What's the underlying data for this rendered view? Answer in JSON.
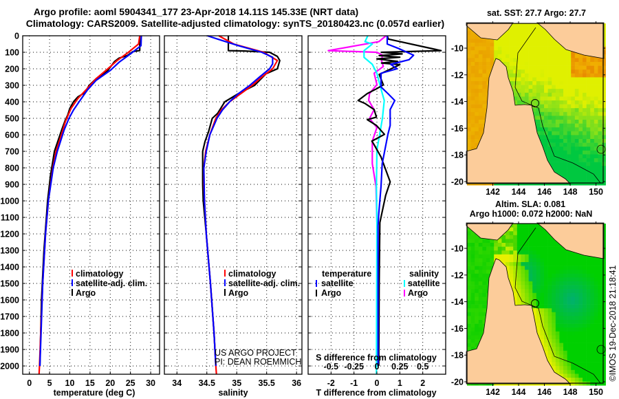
{
  "header": {
    "line1": "Argo profile: aoml 5904341_177 23-Apr-2018 14.11S 145.33E (NRT data)",
    "line2": "Climatology: CARS2009. Satellite-adjusted climatology: synTS_20180423.nc (0.057d earlier)"
  },
  "credit": {
    "line1": "US ARGO PROJECT",
    "line2": "PI: DEAN ROEMMICH"
  },
  "imos_stamp": "©IMOS 19-Dec-2018 21:18:41",
  "legend_profiles": {
    "clim": "climatology",
    "sat": "satellite-adj. clim.",
    "argo": "Argo"
  },
  "legend_diff": {
    "temp_header": "temperature",
    "sal_header": "salinity",
    "sat": "satellite",
    "argo": "Argo"
  },
  "colors": {
    "clim": "#ff0000",
    "sat": "#0000ff",
    "argo": "#000000",
    "s_sat": "#00ffff",
    "s_argo": "#ff00ff",
    "land": "#fccc9a"
  },
  "maps": [
    {
      "title": "sat. SST: 27.7 Argo: 27.7",
      "subtitle": "",
      "lat_ticks": [
        "-10",
        "-12",
        "-14",
        "-16",
        "-18",
        "-20"
      ],
      "lon_ticks": [
        "142",
        "144",
        "146",
        "148",
        "150"
      ],
      "variable": "SST"
    },
    {
      "title": "Altim. SLA: 0.081",
      "subtitle": "Argo h1000: 0.072 h2000: NaN",
      "lat_ticks": [
        "-10",
        "-12",
        "-14",
        "-16",
        "-18",
        "-20"
      ],
      "lon_ticks": [
        "142",
        "144",
        "146",
        "148",
        "150"
      ],
      "variable": "SLA"
    }
  ],
  "chart_data": {
    "type": "line",
    "depth_ticks": [
      "0",
      "100",
      "200",
      "300",
      "400",
      "500",
      "600",
      "700",
      "800",
      "900",
      "1000",
      "1100",
      "1200",
      "1300",
      "1400",
      "1500",
      "1600",
      "1700",
      "1800",
      "1900",
      "2000"
    ],
    "depth_range": [
      0,
      2050
    ],
    "panels": [
      {
        "xlabel": "temperature (deg C)",
        "xlim": [
          -1.65,
          32.2
        ],
        "xticks": [
          "0",
          "5",
          "10",
          "15",
          "20",
          "25",
          "30"
        ],
        "series": [
          {
            "name": "climatology",
            "key": "clim",
            "depth": [
              0,
              50,
              100,
              150,
              200,
              260,
              320,
              380,
              440,
              520,
              570,
              700,
              800,
              1000,
              1200,
              1500,
              1800,
              2000,
              2050
            ],
            "values": [
              27.3,
              27.0,
              24.5,
              21.7,
              19.4,
              16.5,
              14.3,
              12.0,
              10.3,
              8.9,
              8.3,
              6.6,
              5.8,
              4.7,
              4.0,
              3.3,
              2.8,
              2.5,
              2.4
            ]
          },
          {
            "name": "satellite-adj. clim.",
            "key": "sat",
            "depth": [
              0,
              60,
              110,
              160,
              210,
              270,
              330,
              400,
              450,
              500,
              570,
              700,
              800,
              1000,
              1200,
              1500,
              1800,
              2000
            ],
            "values": [
              27.7,
              27.6,
              25.0,
              22.2,
              20.0,
              16.5,
              14.3,
              12.3,
              10.9,
              9.8,
              8.6,
              6.9,
              5.9,
              4.7,
              4.0,
              3.3,
              2.9,
              2.6
            ]
          },
          {
            "name": "Argo",
            "key": "argo",
            "depth": [
              0,
              89,
              96,
              120,
              135,
              155,
              210,
              260,
              300,
              345,
              370,
              400,
              440,
              480,
              510,
              570,
              700,
              850,
              1000,
              1300,
              1600,
              2000
            ],
            "values": [
              27.3,
              27.3,
              25.6,
              24.2,
              22.2,
              21.1,
              19.4,
              16.5,
              14.8,
              13.7,
              12.0,
              10.9,
              10.0,
              9.5,
              8.9,
              8.0,
              6.2,
              5.2,
              4.5,
              3.6,
              3.0,
              2.6
            ]
          }
        ]
      },
      {
        "xlabel": "salinity",
        "xlim": [
          33.79,
          36.09
        ],
        "xticks": [
          "34",
          "34.5",
          "35",
          "35.5",
          "36"
        ],
        "series": [
          {
            "name": "climatology",
            "key": "clim",
            "depth": [
              0,
              50,
              100,
              150,
              200,
              250,
              300,
              350,
              400,
              450,
              500,
              600,
              700,
              800,
              900,
              1000,
              1200,
              1500,
              1800,
              2000,
              2050
            ],
            "values": [
              34.7,
              34.95,
              35.45,
              35.68,
              35.6,
              35.42,
              35.26,
              35.07,
              34.88,
              34.74,
              34.65,
              34.55,
              34.48,
              34.45,
              34.45,
              34.46,
              34.49,
              34.56,
              34.62,
              34.65,
              34.66
            ]
          },
          {
            "name": "satellite-adj. clim.",
            "key": "sat",
            "depth": [
              0,
              20,
              60,
              100,
              130,
              170,
              200,
              250,
              300,
              350,
              400,
              450,
              500,
              600,
              700,
              800,
              1000,
              1200,
              1500,
              1800,
              2000
            ],
            "values": [
              34.51,
              34.68,
              35.03,
              35.42,
              35.6,
              35.6,
              35.55,
              35.38,
              35.22,
              35.03,
              34.88,
              34.76,
              34.67,
              34.55,
              34.49,
              34.45,
              34.46,
              34.49,
              34.56,
              34.62,
              34.65
            ]
          },
          {
            "name": "Argo",
            "key": "argo",
            "depth": [
              0,
              90,
              92,
              100,
              125,
              150,
              200,
              230,
              300,
              350,
              400,
              470,
              500,
              580,
              640,
              700,
              900,
              1000,
              1200,
              1500,
              1800,
              2000
            ],
            "values": [
              34.86,
              34.86,
              35.13,
              35.55,
              35.68,
              35.72,
              35.68,
              35.49,
              35.3,
              35.03,
              34.8,
              34.68,
              34.59,
              34.53,
              34.47,
              34.43,
              34.43,
              34.44,
              34.49,
              34.56,
              34.62,
              34.65
            ]
          }
        ]
      },
      {
        "xlabel": "T difference from climatology",
        "xlim": [
          -3,
          3
        ],
        "xticks": [
          "-2",
          "-1",
          "0",
          "1",
          "2"
        ],
        "s_label": "S difference from climatology",
        "s_xlim": [
          -0.75,
          0.75
        ],
        "s_xticks": [
          "-0.5",
          "-0.25",
          "0",
          "0.25",
          "0.5"
        ],
        "series": [
          {
            "name": "temperature satellite",
            "key": "sat",
            "axis": "T",
            "depth": [
              0,
              50,
              80,
              118,
              145,
              173,
              200,
              227,
              310,
              350,
              392,
              447,
              543,
              597,
              775,
              912,
              1077,
              1150,
              2000
            ],
            "values": [
              0.45,
              0.45,
              1.0,
              1.6,
              1.4,
              0.6,
              0.88,
              0.18,
              0.18,
              0.48,
              0.78,
              0.58,
              0.58,
              0.48,
              0.23,
              0.18,
              0.08,
              0.05,
              0.05
            ]
          },
          {
            "name": "temperature Argo",
            "key": "argo",
            "axis": "T",
            "depth": [
              0,
              20,
              90,
              100,
              110,
              120,
              130,
              140,
              155,
              165,
              175,
              234,
              297,
              320,
              350,
              392,
              410,
              447,
              493,
              508,
              543,
              597,
              638,
              660,
              734,
              885,
              967,
              1132,
              1500,
              2000
            ],
            "values": [
              0.45,
              0.5,
              2.8,
              0.2,
              1.1,
              0.1,
              1.0,
              0.0,
              0.9,
              0.2,
              1.0,
              0.1,
              0.28,
              0.0,
              -0.42,
              -0.82,
              -0.52,
              -0.12,
              -0.02,
              -0.42,
              -0.02,
              0.33,
              -0.22,
              -0.12,
              0.18,
              0.58,
              0.38,
              0.13,
              0.1,
              0.08
            ]
          },
          {
            "name": "salinity satellite",
            "key": "s_sat",
            "axis": "S",
            "depth": [
              0,
              36,
              50,
              90,
              131,
              173,
              227,
              323,
              392,
              501,
              597,
              693,
              912,
              1130,
              2050
            ],
            "values": [
              -0.1,
              -0.13,
              -0.05,
              -0.14,
              -0.14,
              -0.05,
              0.0,
              0.045,
              0.08,
              0.06,
              0.03,
              0.0,
              -0.005,
              0.0,
              -0.005
            ]
          },
          {
            "name": "salinity Argo",
            "key": "s_argo",
            "axis": "S",
            "depth": [
              0,
              36,
              90,
              100,
              117,
              150,
              186,
              227,
              296,
              350,
              392,
              447,
              501,
              556,
              638,
              775,
              912,
              1130
            ],
            "values": [
              0.1,
              0.02,
              -0.53,
              0.0,
              0.06,
              0.05,
              0.07,
              -0.03,
              0.0,
              -0.08,
              -0.09,
              -0.03,
              -0.08,
              0.0,
              -0.05,
              -0.05,
              -0.01,
              0.0
            ]
          }
        ]
      }
    ]
  }
}
